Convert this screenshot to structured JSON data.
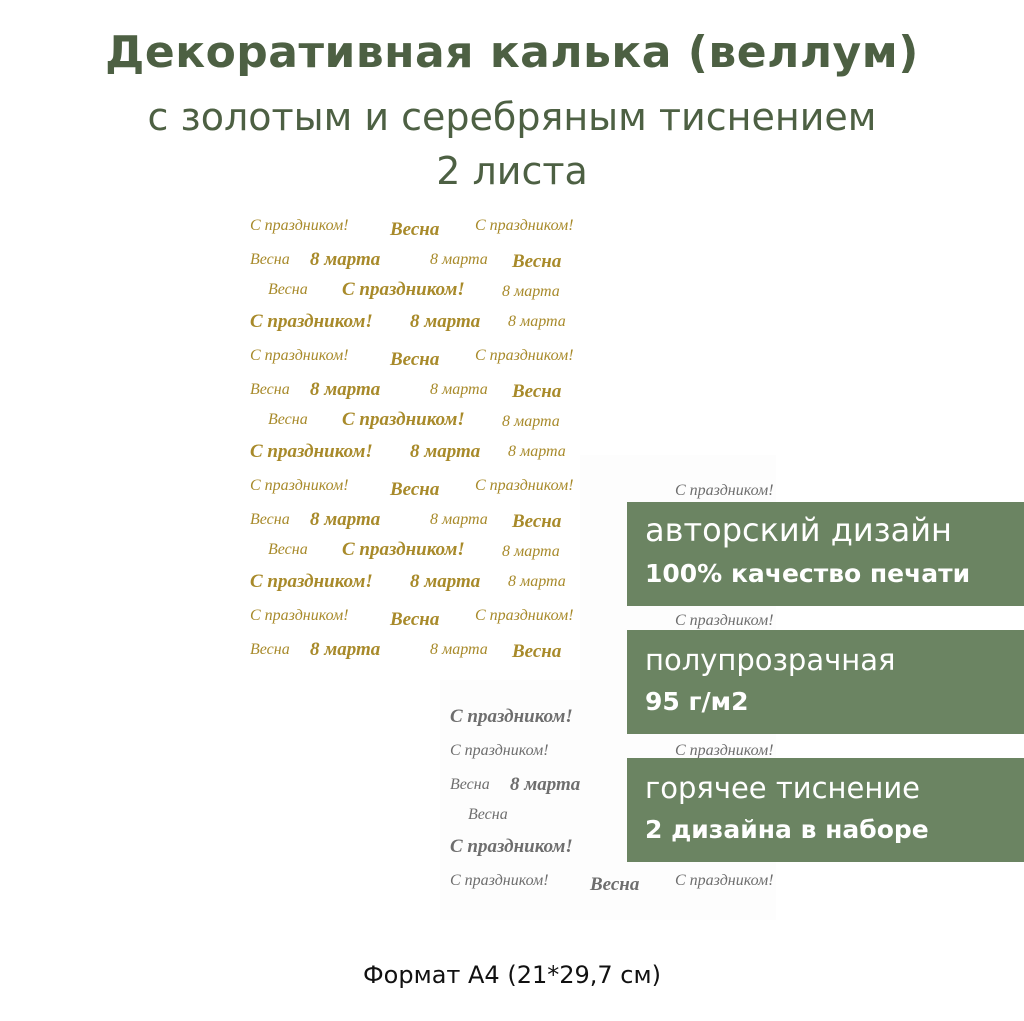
{
  "header": {
    "title": "Декоративная калька (веллум)",
    "subtitle": "с золотым и серебряным тиснением",
    "count": "2 листа"
  },
  "pattern": {
    "phrases": {
      "greeting": "С праздником!",
      "spring": "Весна",
      "march8": "8 марта"
    },
    "colors": {
      "gold": "#a88a2a",
      "silver": "#6e6e6e"
    }
  },
  "badges": [
    {
      "line1": "авторский дизайн",
      "line2": "100% качество печати"
    },
    {
      "line1": "полупрозрачная",
      "line2": "95 г/м2"
    },
    {
      "line1": "горячее тиснение",
      "line2": "2 дизайна в наборе"
    }
  ],
  "colors": {
    "title": "#4d6043",
    "badge": "#6b8462"
  },
  "footer": {
    "format": "Формат А4 (21*29,7 см)"
  }
}
